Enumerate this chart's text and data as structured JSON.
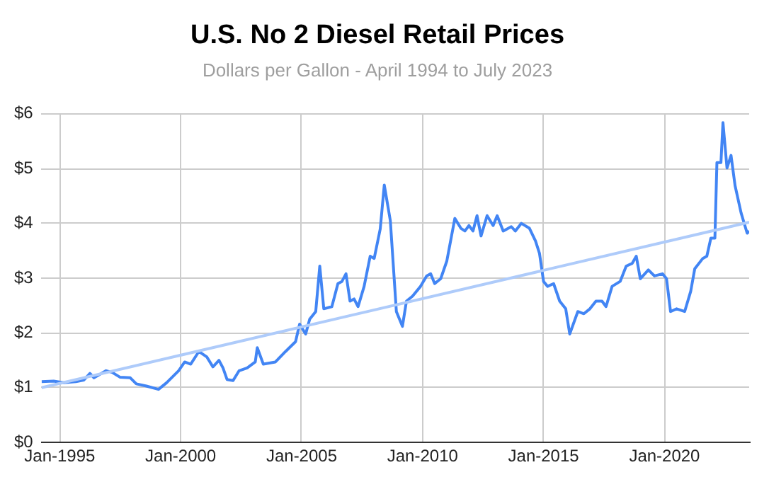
{
  "chart_data": {
    "type": "line",
    "title": "U.S. No 2 Diesel Retail Prices",
    "subtitle": "Dollars per Gallon - April 1994 to July 2023",
    "x": [
      "1994-04",
      "1994-10",
      "1995-03",
      "1995-09",
      "1996-01",
      "1996-04",
      "1996-06",
      "1996-12",
      "1997-03",
      "1997-07",
      "1997-12",
      "1998-03",
      "1998-08",
      "1999-02",
      "1999-06",
      "1999-12",
      "2000-03",
      "2000-06",
      "2000-10",
      "2001-02",
      "2001-05",
      "2001-08",
      "2001-10",
      "2001-12",
      "2002-03",
      "2002-06",
      "2002-10",
      "2003-02",
      "2003-03",
      "2003-06",
      "2003-12",
      "2004-05",
      "2004-10",
      "2004-12",
      "2005-03",
      "2005-05",
      "2005-08",
      "2005-10",
      "2005-12",
      "2006-04",
      "2006-07",
      "2006-09",
      "2006-11",
      "2007-01",
      "2007-03",
      "2007-05",
      "2007-08",
      "2007-11",
      "2008-01",
      "2008-04",
      "2008-06",
      "2008-09",
      "2008-12",
      "2009-03",
      "2009-05",
      "2009-08",
      "2009-12",
      "2010-03",
      "2010-05",
      "2010-07",
      "2010-10",
      "2011-01",
      "2011-05",
      "2011-08",
      "2011-10",
      "2011-12",
      "2012-02",
      "2012-04",
      "2012-06",
      "2012-09",
      "2012-12",
      "2013-02",
      "2013-05",
      "2013-09",
      "2013-11",
      "2014-02",
      "2014-06",
      "2014-09",
      "2014-11",
      "2015-01",
      "2015-03",
      "2015-06",
      "2015-09",
      "2015-12",
      "2016-02",
      "2016-06",
      "2016-09",
      "2016-12",
      "2017-03",
      "2017-06",
      "2017-08",
      "2017-11",
      "2018-03",
      "2018-06",
      "2018-09",
      "2018-11",
      "2019-01",
      "2019-05",
      "2019-08",
      "2019-12",
      "2020-02",
      "2020-04",
      "2020-07",
      "2020-11",
      "2021-02",
      "2021-04",
      "2021-08",
      "2021-10",
      "2021-12",
      "2022-02",
      "2022-03",
      "2022-05",
      "2022-06",
      "2022-08",
      "2022-10",
      "2022-12",
      "2023-03",
      "2023-06",
      "2023-07"
    ],
    "series": [
      {
        "color": "#4285f4",
        "values": [
          1.11,
          1.12,
          1.09,
          1.11,
          1.14,
          1.26,
          1.18,
          1.31,
          1.28,
          1.19,
          1.18,
          1.07,
          1.03,
          0.97,
          1.09,
          1.31,
          1.47,
          1.43,
          1.66,
          1.56,
          1.38,
          1.5,
          1.36,
          1.15,
          1.13,
          1.31,
          1.36,
          1.47,
          1.73,
          1.43,
          1.47,
          1.66,
          1.84,
          2.16,
          1.98,
          2.25,
          2.39,
          3.22,
          2.44,
          2.48,
          2.9,
          2.94,
          3.08,
          2.58,
          2.62,
          2.48,
          2.85,
          3.4,
          3.36,
          3.9,
          4.7,
          4.05,
          2.39,
          2.12,
          2.58,
          2.67,
          2.85,
          3.04,
          3.08,
          2.9,
          2.99,
          3.31,
          4.09,
          3.91,
          3.86,
          3.96,
          3.86,
          4.14,
          3.77,
          4.14,
          3.96,
          4.14,
          3.86,
          3.94,
          3.86,
          4.0,
          3.91,
          3.68,
          3.45,
          2.94,
          2.85,
          2.9,
          2.58,
          2.44,
          1.98,
          2.39,
          2.35,
          2.44,
          2.58,
          2.58,
          2.48,
          2.85,
          2.94,
          3.22,
          3.27,
          3.4,
          2.99,
          3.15,
          3.04,
          3.08,
          2.99,
          2.39,
          2.44,
          2.39,
          2.76,
          3.17,
          3.36,
          3.4,
          3.73,
          3.73,
          5.11,
          5.11,
          5.84,
          5.01,
          5.24,
          4.69,
          4.19,
          3.82,
          3.86
        ]
      },
      {
        "type": "line",
        "color": "#aecbfa",
        "x": [
          "1994-04",
          "2023-07"
        ],
        "values": [
          1.0,
          4.02
        ]
      }
    ],
    "xlim": [
      "1994-04",
      "2023-07"
    ],
    "xticks": [
      {
        "value": "1995-01",
        "label": "Jan-1995"
      },
      {
        "value": "2000-01",
        "label": "Jan-2000"
      },
      {
        "value": "2005-01",
        "label": "Jan-2005"
      },
      {
        "value": "2010-01",
        "label": "Jan-2010"
      },
      {
        "value": "2015-01",
        "label": "Jan-2015"
      },
      {
        "value": "2020-01",
        "label": "Jan-2020"
      }
    ],
    "ylim": [
      0,
      6
    ],
    "yticks": [
      {
        "value": 0,
        "label": "$0"
      },
      {
        "value": 1,
        "label": "$1"
      },
      {
        "value": 2,
        "label": "$2"
      },
      {
        "value": 3,
        "label": "$3"
      },
      {
        "value": 4,
        "label": "$4"
      },
      {
        "value": 5,
        "label": "$5"
      },
      {
        "value": 6,
        "label": "$6"
      }
    ],
    "grid": true,
    "legend": false,
    "marker": "none",
    "line_style": "solid"
  }
}
